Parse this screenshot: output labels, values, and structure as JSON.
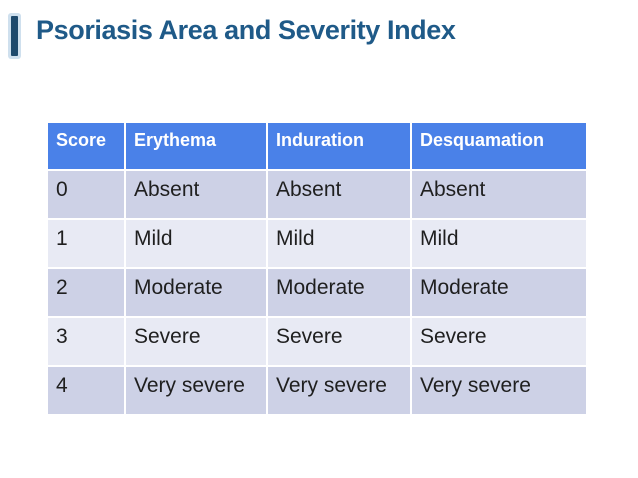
{
  "slide": {
    "title": "Psoriasis Area and Severity Index"
  },
  "table": {
    "headers": [
      "Score",
      "Erythema",
      "Induration",
      "Desquamation"
    ],
    "rows": [
      [
        "0",
        "Absent",
        "Absent",
        "Absent"
      ],
      [
        "1",
        "Mild",
        "Mild",
        "Mild"
      ],
      [
        "2",
        "Moderate",
        "Moderate",
        "Moderate"
      ],
      [
        "3",
        "Severe",
        "Severe",
        "Severe"
      ],
      [
        "4",
        "Very severe",
        "Very severe",
        "Very severe"
      ]
    ]
  },
  "colors": {
    "title-color": "#1f5a88",
    "accent-dark": "#1e4a6d",
    "accent-light": "#cfe0ee",
    "header-bg": "#4a81e8",
    "header-text": "#ffffff",
    "band-dark": "#cdd1e6",
    "band-light": "#e8eaf4",
    "body-text": "#1f1f1f"
  }
}
